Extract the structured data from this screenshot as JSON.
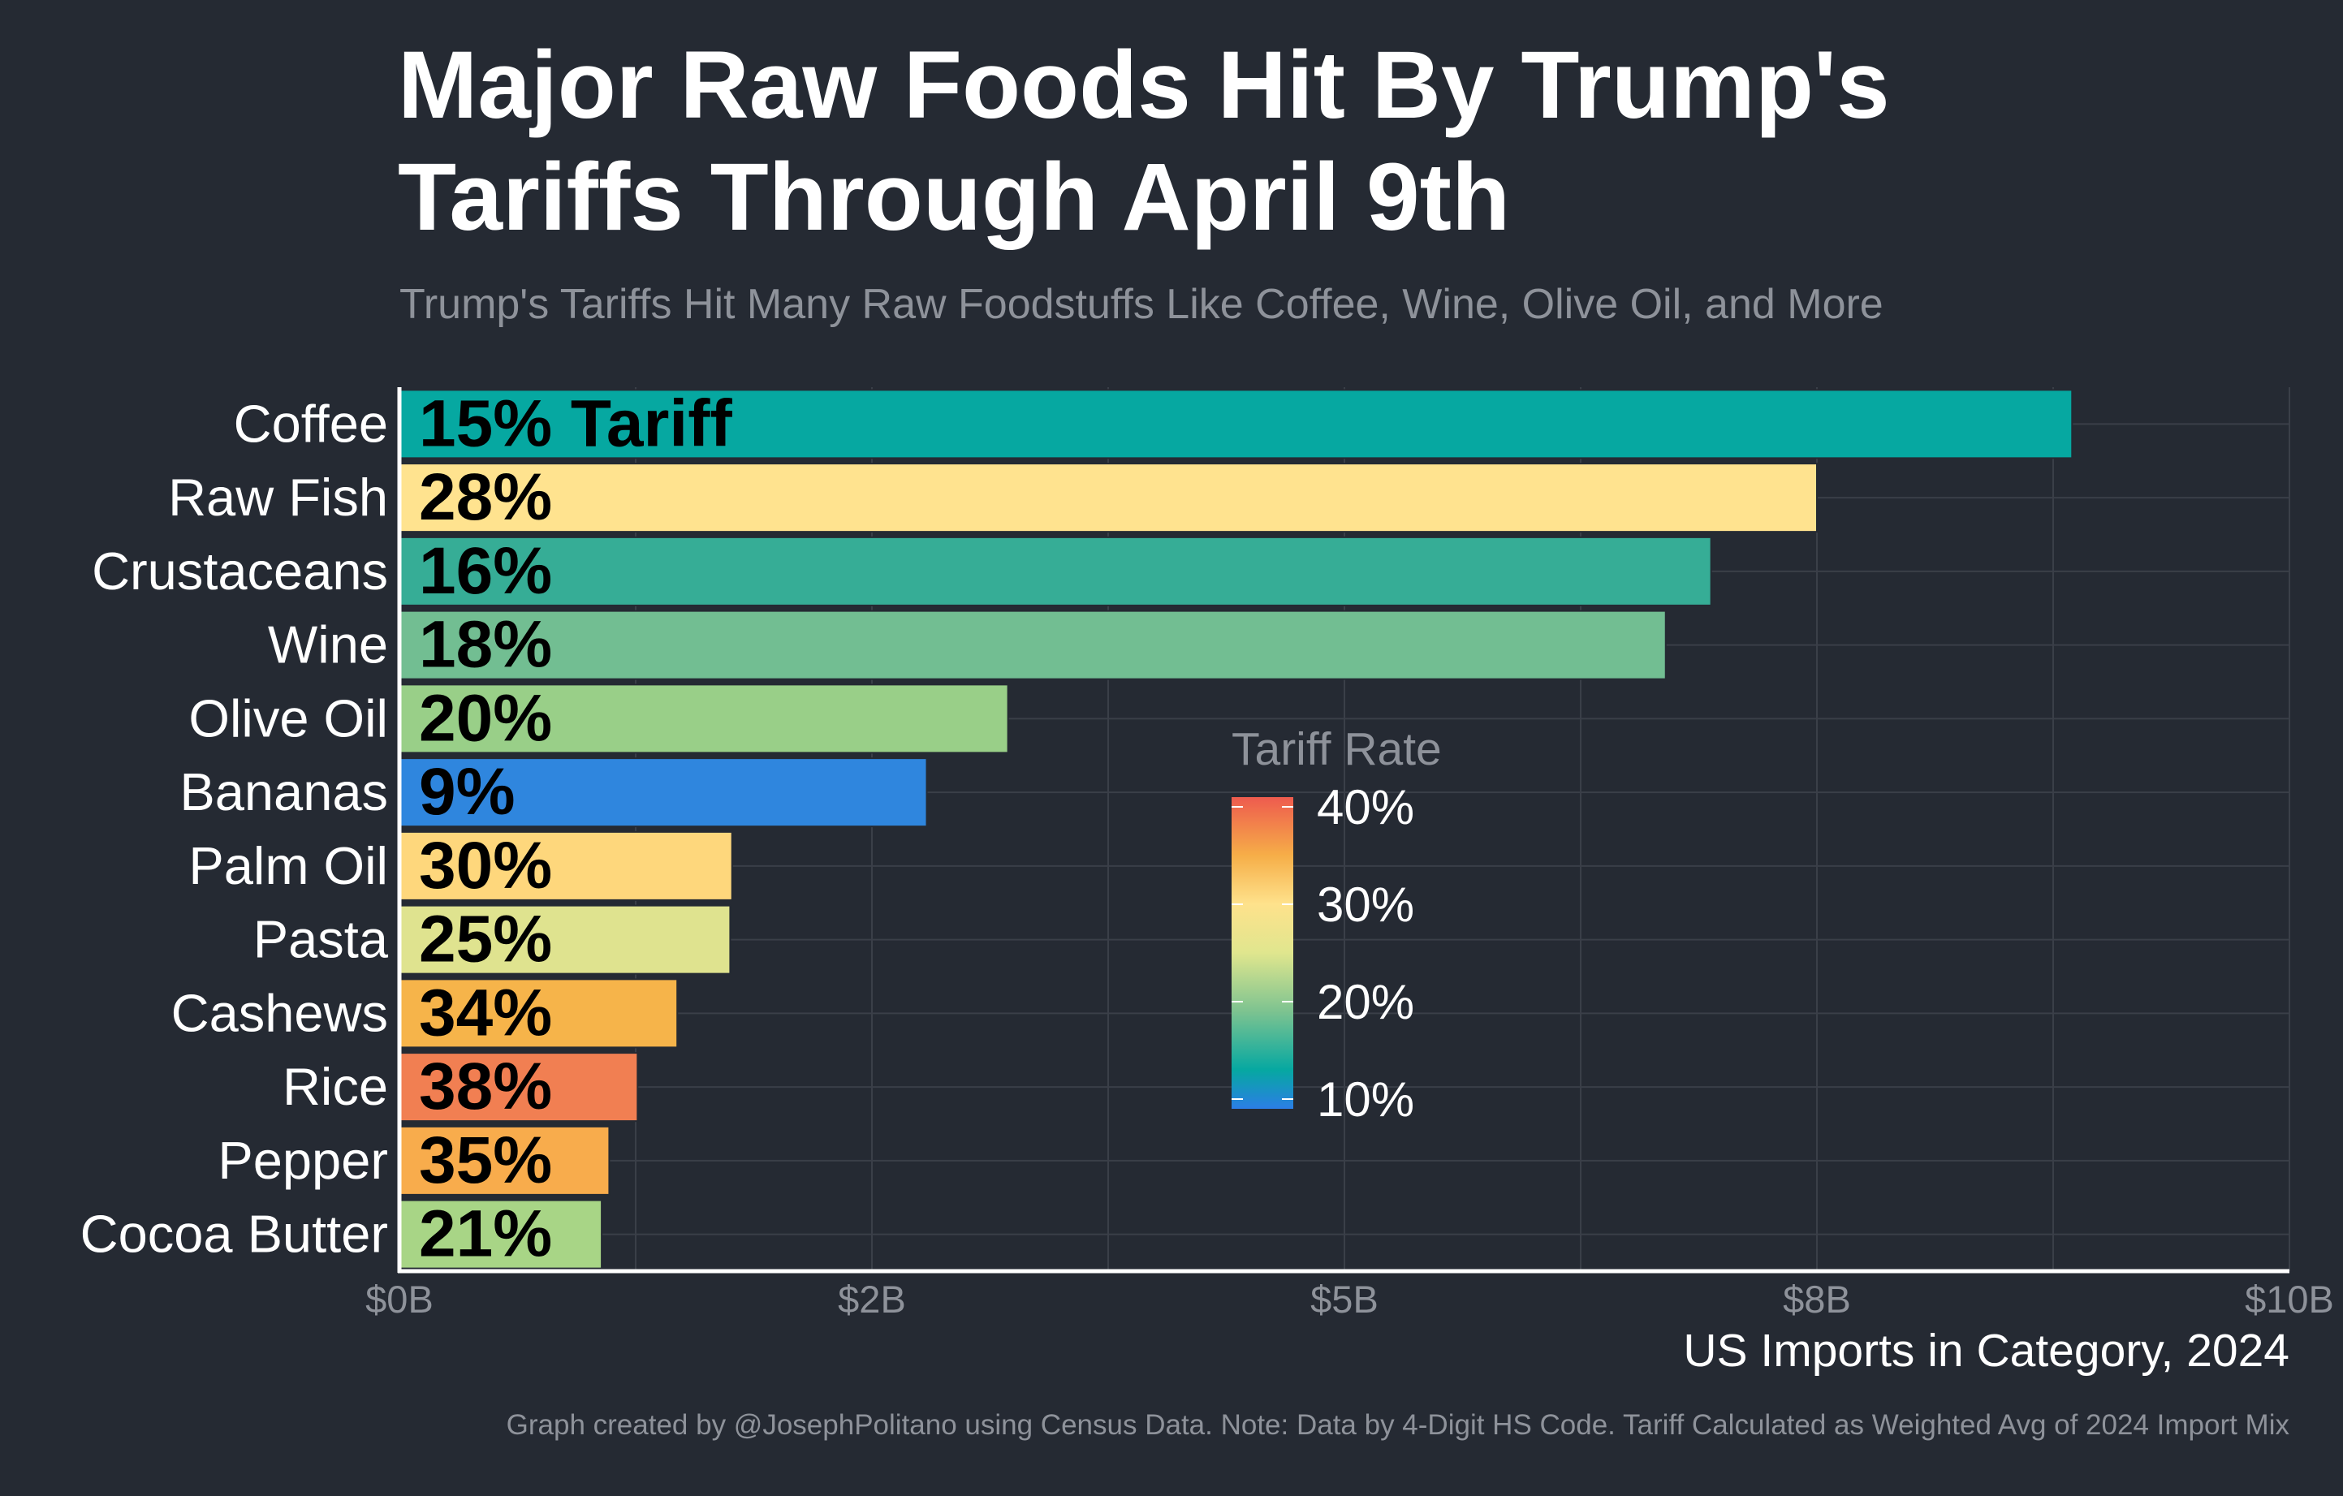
{
  "chart_data": {
    "type": "bar",
    "orientation": "horizontal",
    "title": "Major Raw Foods Hit By Trump's Tariffs Through April 9th",
    "title_lines": [
      "Major Raw Foods Hit By Trump's",
      "Tariffs Through April 9th"
    ],
    "subtitle": "Trump's Tariffs Hit Many Raw Foodstuffs Like Coffee, Wine, Olive Oil, and More",
    "xlabel": "US Imports in Category, 2024",
    "ylabel": "",
    "caption": "Graph created by @JosephPolitano using Census Data. Note: Data by 4-Digit HS Code. Tariff Calculated as Weighted Avg of 2024 Import Mix",
    "xlim": [
      0,
      10
    ],
    "x_tick_values": [
      0,
      2.5,
      5,
      7.5,
      10
    ],
    "x_tick_labels": [
      "$0B",
      "$2B",
      "$5B",
      "$8B",
      "$10B"
    ],
    "grid": true,
    "categories": [
      "Coffee",
      "Raw Fish",
      "Crustaceans",
      "Wine",
      "Olive Oil",
      "Bananas",
      "Palm Oil",
      "Pasta",
      "Cashews",
      "Rice",
      "Pepper",
      "Cocoa Butter"
    ],
    "values": [
      8.85,
      7.5,
      6.94,
      6.7,
      3.22,
      2.79,
      1.76,
      1.75,
      1.47,
      1.26,
      1.11,
      1.07
    ],
    "bar_labels": [
      "15% Tariff",
      "28%",
      "16%",
      "18%",
      "20%",
      "9%",
      "30%",
      "25%",
      "34%",
      "38%",
      "35%",
      "21%"
    ],
    "tariff_rates": [
      15,
      28,
      16,
      18,
      20,
      9,
      30,
      25,
      34,
      38,
      35,
      21
    ],
    "bar_colors": [
      "#06a8a1",
      "#ffe38f",
      "#36ad96",
      "#72be92",
      "#99cf88",
      "#2f86de",
      "#fed77c",
      "#dfe38f",
      "#f6b44a",
      "#f17f52",
      "#f8ac4c",
      "#a8d586"
    ],
    "legend": {
      "title": "Tariff Rate",
      "type": "colorbar",
      "placement": "center",
      "ticks": [
        40,
        30,
        20,
        10
      ],
      "tick_labels": [
        "40%",
        "30%",
        "20%",
        "10%"
      ],
      "range": [
        9,
        41
      ],
      "color_stops": [
        {
          "value": 9,
          "color": "#2b7ee6"
        },
        {
          "value": 13,
          "color": "#06a8a1"
        },
        {
          "value": 19,
          "color": "#7dc390"
        },
        {
          "value": 25,
          "color": "#e0e68e"
        },
        {
          "value": 30,
          "color": "#fee28c"
        },
        {
          "value": 35,
          "color": "#f6ae48"
        },
        {
          "value": 41,
          "color": "#ee5b4e"
        }
      ]
    },
    "colors": {
      "background": "#252a33",
      "title": "#ffffff",
      "subtitle": "#8e929a",
      "category_label": "#ffffff",
      "tick_label": "#8e929a",
      "axis_title": "#ffffff",
      "caption": "#8e929a",
      "grid": "#3a3f48",
      "axis_line": "#ffffff",
      "bar_label": "#000000",
      "bar_outline": "#252a33"
    }
  }
}
